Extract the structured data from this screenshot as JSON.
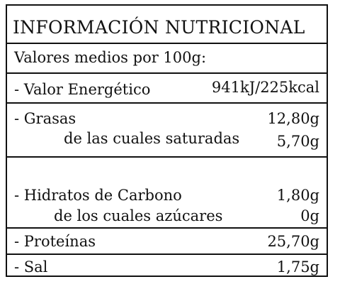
{
  "title": "INFORMACIÓN NUTRICIONAL",
  "basis": "Valores medios por 100g:",
  "energy": {
    "label": "- Valor Energético",
    "value": "941kJ/225kcal"
  },
  "fat": {
    "label": "- Grasas",
    "value": "12,80g"
  },
  "saturates": {
    "label": "de las cuales saturadas",
    "value": "5,70g"
  },
  "carbs": {
    "label": "- Hidratos de Carbono",
    "value": "1,80g"
  },
  "sugars": {
    "label": "de los cuales azúcares",
    "value": "0g"
  },
  "protein": {
    "label": "- Proteínas",
    "value": "25,70g"
  },
  "salt": {
    "label": "- Sal",
    "value": "1,75g"
  }
}
